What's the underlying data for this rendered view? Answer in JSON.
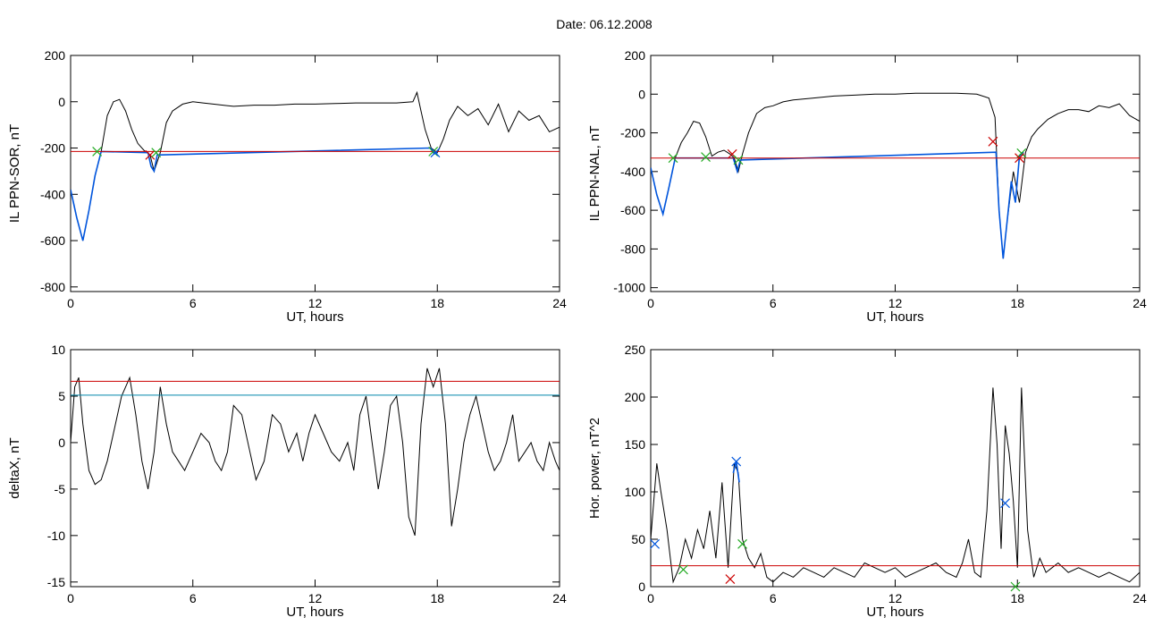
{
  "page": {
    "title": "Date:  06.12.2008"
  },
  "chart_data": [
    {
      "type": "line",
      "xlabel": "UT, hours",
      "ylabel": "IL PPN-SOR, nT",
      "xlim": [
        0,
        24
      ],
      "ylim": [
        -820,
        200
      ],
      "xticks": [
        0,
        6,
        12,
        18,
        24
      ],
      "yticks": [
        200,
        0,
        -200,
        -400,
        -600,
        -800
      ],
      "threshold": {
        "value": -215,
        "color": "#cc0000"
      },
      "series": [
        {
          "color": "#000000",
          "x": [
            0,
            0.3,
            0.6,
            0.9,
            1.2,
            1.5,
            1.8,
            2.1,
            2.4,
            2.7,
            3.0,
            3.3,
            3.6,
            3.9,
            4.1,
            4.4,
            4.7,
            5.0,
            5.5,
            6,
            6.5,
            7,
            8,
            9,
            10,
            11,
            12,
            13,
            14,
            15,
            16,
            16.8,
            17.0,
            17.2,
            17.4,
            17.7,
            18.0,
            18.3,
            18.6,
            19.0,
            19.5,
            20,
            20.5,
            21,
            21.5,
            22,
            22.5,
            23,
            23.5,
            24
          ],
          "y": [
            -380,
            -500,
            -600,
            -470,
            -320,
            -215,
            -60,
            0,
            10,
            -40,
            -120,
            -180,
            -210,
            -230,
            -300,
            -220,
            -90,
            -40,
            -10,
            0,
            -5,
            -10,
            -20,
            -15,
            -15,
            -10,
            -10,
            -8,
            -5,
            -5,
            -5,
            0,
            40,
            -40,
            -120,
            -200,
            -220,
            -160,
            -80,
            -20,
            -60,
            -30,
            -100,
            -10,
            -130,
            -40,
            -80,
            -60,
            -130,
            -110
          ]
        },
        {
          "color": "#0055dd",
          "x": [
            0,
            0.3,
            0.6,
            0.9,
            1.2,
            1.5,
            3.8,
            3.95,
            4.1,
            4.25,
            17.65,
            17.85,
            18.0
          ],
          "y": [
            -380,
            -500,
            -600,
            -470,
            -320,
            -215,
            -220,
            -280,
            -300,
            -230,
            -200,
            -225,
            -220
          ]
        }
      ],
      "markers": [
        {
          "x": 1.3,
          "y": -215,
          "color": "#22aa22"
        },
        {
          "x": 3.9,
          "y": -230,
          "color": "#cc0000"
        },
        {
          "x": 4.2,
          "y": -220,
          "color": "#22aa22"
        },
        {
          "x": 17.8,
          "y": -215,
          "color": "#22aa22"
        },
        {
          "x": 17.9,
          "y": -220,
          "color": "#0055dd"
        }
      ]
    },
    {
      "type": "line",
      "xlabel": "UT, hours",
      "ylabel": "IL PPN-NAL, nT",
      "xlim": [
        0,
        24
      ],
      "ylim": [
        -1020,
        200
      ],
      "xticks": [
        0,
        6,
        12,
        18,
        24
      ],
      "yticks": [
        200,
        0,
        -200,
        -400,
        -600,
        -800,
        -1000
      ],
      "threshold": {
        "value": -330,
        "color": "#cc0000"
      },
      "series": [
        {
          "color": "#000000",
          "x": [
            0,
            0.3,
            0.6,
            0.9,
            1.2,
            1.5,
            1.8,
            2.1,
            2.4,
            2.7,
            3.0,
            3.3,
            3.6,
            3.9,
            4.1,
            4.3,
            4.5,
            4.8,
            5.2,
            5.6,
            6,
            6.5,
            7,
            8,
            9,
            10,
            11,
            12,
            13,
            14,
            15,
            16,
            16.6,
            16.9,
            17.1,
            17.3,
            17.5,
            17.8,
            18.1,
            18.4,
            18.7,
            19,
            19.5,
            20,
            20.5,
            21,
            21.5,
            22,
            22.5,
            23,
            23.5,
            24
          ],
          "y": [
            -380,
            -520,
            -620,
            -480,
            -330,
            -250,
            -200,
            -140,
            -150,
            -220,
            -320,
            -300,
            -290,
            -310,
            -330,
            -400,
            -310,
            -200,
            -100,
            -70,
            -60,
            -40,
            -30,
            -20,
            -10,
            -5,
            0,
            0,
            5,
            5,
            5,
            0,
            -20,
            -120,
            -600,
            -850,
            -650,
            -400,
            -560,
            -300,
            -220,
            -180,
            -130,
            -100,
            -80,
            -80,
            -90,
            -60,
            -70,
            -50,
            -110,
            -140
          ]
        },
        {
          "color": "#0055dd",
          "x": [
            0,
            0.3,
            0.6,
            0.9,
            1.2,
            4.05,
            4.25,
            4.4,
            16.95,
            17.1,
            17.3,
            17.5,
            17.7,
            17.9,
            18.1,
            18.3
          ],
          "y": [
            -380,
            -520,
            -620,
            -480,
            -330,
            -330,
            -400,
            -340,
            -300,
            -600,
            -850,
            -650,
            -450,
            -560,
            -320,
            -300
          ]
        }
      ],
      "markers": [
        {
          "x": 1.1,
          "y": -330,
          "color": "#22aa22"
        },
        {
          "x": 2.7,
          "y": -325,
          "color": "#22aa22"
        },
        {
          "x": 4.0,
          "y": -310,
          "color": "#cc0000"
        },
        {
          "x": 4.3,
          "y": -340,
          "color": "#22aa22"
        },
        {
          "x": 16.8,
          "y": -245,
          "color": "#cc0000"
        },
        {
          "x": 18.2,
          "y": -305,
          "color": "#22aa22"
        },
        {
          "x": 18.1,
          "y": -330,
          "color": "#cc0000"
        }
      ]
    },
    {
      "type": "line",
      "xlabel": "UT, hours",
      "ylabel": "deltaX, nT",
      "xlim": [
        0,
        24
      ],
      "ylim": [
        -15.5,
        10
      ],
      "xticks": [
        0,
        6,
        12,
        18,
        24
      ],
      "yticks": [
        10,
        5,
        0,
        -5,
        -10,
        -15
      ],
      "threshold": {
        "value": 6.6,
        "color": "#cc0000"
      },
      "threshold2": {
        "value": 5.1,
        "color": "#0088aa"
      },
      "series": [
        {
          "color": "#000000",
          "x": [
            0,
            0.2,
            0.4,
            0.6,
            0.9,
            1.2,
            1.5,
            1.8,
            2.1,
            2.5,
            2.9,
            3.2,
            3.5,
            3.8,
            4.1,
            4.4,
            4.7,
            5.0,
            5.3,
            5.6,
            6.0,
            6.4,
            6.8,
            7.1,
            7.4,
            7.7,
            8.0,
            8.4,
            8.8,
            9.1,
            9.5,
            9.9,
            10.3,
            10.7,
            11.1,
            11.4,
            11.7,
            12.0,
            12.4,
            12.8,
            13.2,
            13.6,
            13.9,
            14.2,
            14.5,
            14.8,
            15.1,
            15.4,
            15.7,
            16.0,
            16.3,
            16.6,
            16.9,
            17.2,
            17.5,
            17.8,
            18.1,
            18.4,
            18.7,
            19.0,
            19.3,
            19.6,
            19.9,
            20.2,
            20.5,
            20.8,
            21.1,
            21.4,
            21.7,
            22.0,
            22.3,
            22.6,
            22.9,
            23.2,
            23.5,
            23.8,
            24
          ],
          "y": [
            0,
            6,
            7,
            2,
            -3,
            -4.5,
            -4,
            -2,
            1,
            5,
            7,
            3,
            -2,
            -5,
            -1,
            6,
            2,
            -1,
            -2,
            -3,
            -1,
            1,
            0,
            -2,
            -3,
            -1,
            4,
            3,
            -1,
            -4,
            -2,
            3,
            2,
            -1,
            1,
            -2,
            1,
            3,
            1,
            -1,
            -2,
            0,
            -3,
            3,
            5,
            0,
            -5,
            -1,
            4,
            5,
            0,
            -8,
            -10,
            2,
            8,
            6,
            8,
            2,
            -9,
            -5,
            0,
            3,
            5,
            2,
            -1,
            -3,
            -2,
            0,
            3,
            -2,
            -1,
            0,
            -2,
            -3,
            0,
            -2,
            -3
          ]
        }
      ],
      "markers": []
    },
    {
      "type": "line",
      "xlabel": "UT, hours",
      "ylabel": "Hor. power, nT^2",
      "xlim": [
        0,
        24
      ],
      "ylim": [
        0,
        250
      ],
      "xticks": [
        0,
        6,
        12,
        18,
        24
      ],
      "yticks": [
        250,
        200,
        150,
        100,
        50,
        0
      ],
      "threshold": {
        "value": 22,
        "color": "#cc0000"
      },
      "series": [
        {
          "color": "#000000",
          "x": [
            0,
            0.3,
            0.5,
            0.8,
            1.1,
            1.4,
            1.7,
            2.0,
            2.3,
            2.6,
            2.9,
            3.2,
            3.5,
            3.8,
            4.1,
            4.3,
            4.5,
            4.8,
            5.1,
            5.4,
            5.7,
            6.0,
            6.5,
            7,
            7.5,
            8,
            8.5,
            9,
            9.5,
            10,
            10.5,
            11,
            11.5,
            12,
            12.5,
            13,
            13.5,
            14,
            14.5,
            15,
            15.3,
            15.6,
            15.9,
            16.2,
            16.5,
            16.8,
            17.0,
            17.2,
            17.4,
            17.6,
            17.8,
            18.0,
            18.2,
            18.5,
            18.8,
            19.1,
            19.4,
            19.7,
            20,
            20.5,
            21,
            21.5,
            22,
            22.5,
            23,
            23.5,
            24
          ],
          "y": [
            50,
            130,
            100,
            60,
            5,
            20,
            50,
            30,
            60,
            40,
            80,
            30,
            110,
            20,
            130,
            120,
            50,
            30,
            20,
            35,
            10,
            5,
            15,
            10,
            20,
            15,
            10,
            20,
            15,
            10,
            25,
            20,
            15,
            20,
            10,
            15,
            20,
            25,
            15,
            10,
            25,
            50,
            15,
            10,
            80,
            210,
            150,
            40,
            170,
            140,
            90,
            20,
            210,
            60,
            10,
            30,
            15,
            20,
            25,
            15,
            20,
            15,
            10,
            15,
            10,
            5,
            15
          ]
        },
        {
          "color": "#0055dd",
          "x": [
            4.05,
            4.2,
            4.35
          ],
          "y": [
            120,
            132,
            110
          ]
        }
      ],
      "markers": [
        {
          "x": 0.2,
          "y": 45,
          "color": "#0055dd"
        },
        {
          "x": 1.6,
          "y": 18,
          "color": "#22aa22"
        },
        {
          "x": 3.9,
          "y": 8,
          "color": "#cc0000"
        },
        {
          "x": 4.2,
          "y": 132,
          "color": "#0055dd"
        },
        {
          "x": 4.5,
          "y": 45,
          "color": "#22aa22"
        },
        {
          "x": 17.4,
          "y": 88,
          "color": "#0055dd"
        },
        {
          "x": 17.9,
          "y": 0,
          "color": "#22aa22"
        }
      ]
    }
  ]
}
